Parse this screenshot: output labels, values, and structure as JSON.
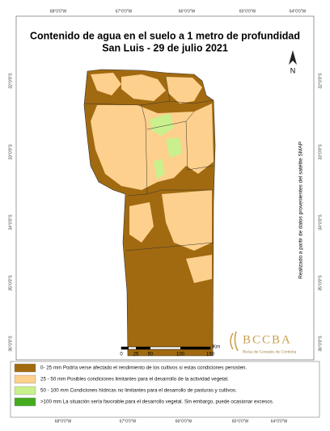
{
  "header": {
    "title": "Contenido de agua en el suelo a 1 metro de profundidad",
    "subtitle": "San Luis - 29 de julio 2021"
  },
  "longitudes": [
    "68°0'0\"W",
    "67°0'0\"W",
    "66°0'0\"W",
    "65°0'0\"W",
    "64°0'0\"W"
  ],
  "latitudes": [
    "32°0'0\"S",
    "33°0'0\"S",
    "34°0'0\"S",
    "35°0'0\"S",
    "36°0'0\"S"
  ],
  "north": "N",
  "source_note": "Realizado a partir de datos provenientes del satélite SMAP",
  "scale": {
    "labels": [
      "0",
      "25",
      "50",
      "100",
      "150"
    ],
    "unit": "Km"
  },
  "logo": {
    "name": "BCCBA",
    "subtitle": "Bolsa de Cereales de Córdoba"
  },
  "legend": [
    {
      "label": "0- 25 mm Podría verse afectado el rendimiento de los cultivos si estas condiciones persisten.",
      "color": "#a26a10"
    },
    {
      "label": "25 - 50 mm Posibles condiciones limitantes para el desarrollo de la actividad vegetal.",
      "color": "#fdd08e"
    },
    {
      "label": "50 - 100 mm Condiciones hídricas no limitantes para el desarrollo de pasturas y cultivos.",
      "color": "#c9f08c"
    },
    {
      "label": ">100 mm La situación sería favorable para el desarrollo vegetal. Sin embargo, puede ocasionar excesos.",
      "color": "#45ab1e"
    }
  ]
}
